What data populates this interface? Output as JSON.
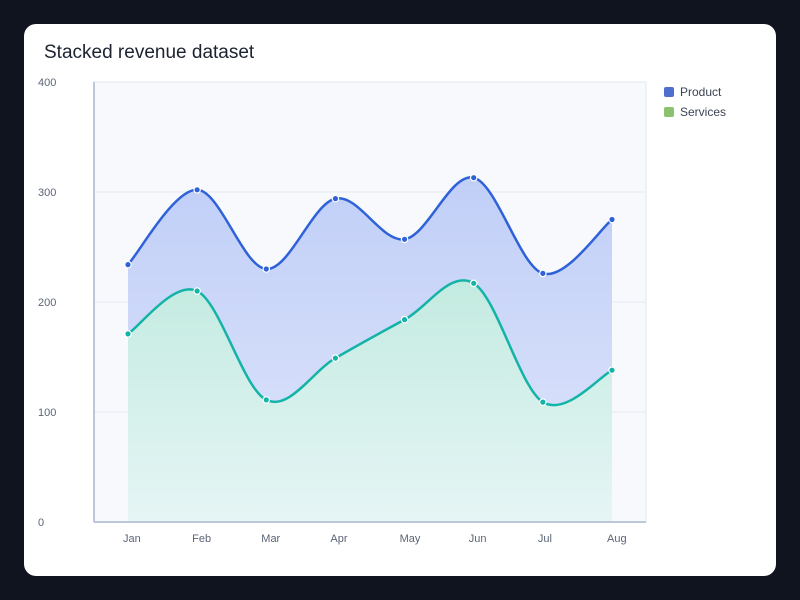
{
  "chart_data": {
    "type": "area",
    "stacked": true,
    "title": "Stacked revenue dataset",
    "xlabel": "",
    "ylabel": "",
    "categories": [
      "Jan",
      "Feb",
      "Mar",
      "Apr",
      "May",
      "Jun",
      "Jul",
      "Aug"
    ],
    "ylim": [
      0,
      400
    ],
    "yticks": [
      0,
      100,
      200,
      300,
      400
    ],
    "grid": true,
    "legend_position": "top-right",
    "series": [
      {
        "name": "Services",
        "color": "#14b3a8",
        "legend_color": "#8ac26d",
        "values": [
          171,
          210,
          111,
          149,
          184,
          217,
          109,
          138
        ]
      },
      {
        "name": "Product",
        "color": "#2f62d8",
        "legend_color": "#4f6fcf",
        "values": [
          63,
          92,
          119,
          145,
          73,
          96,
          117,
          137
        ]
      }
    ]
  }
}
